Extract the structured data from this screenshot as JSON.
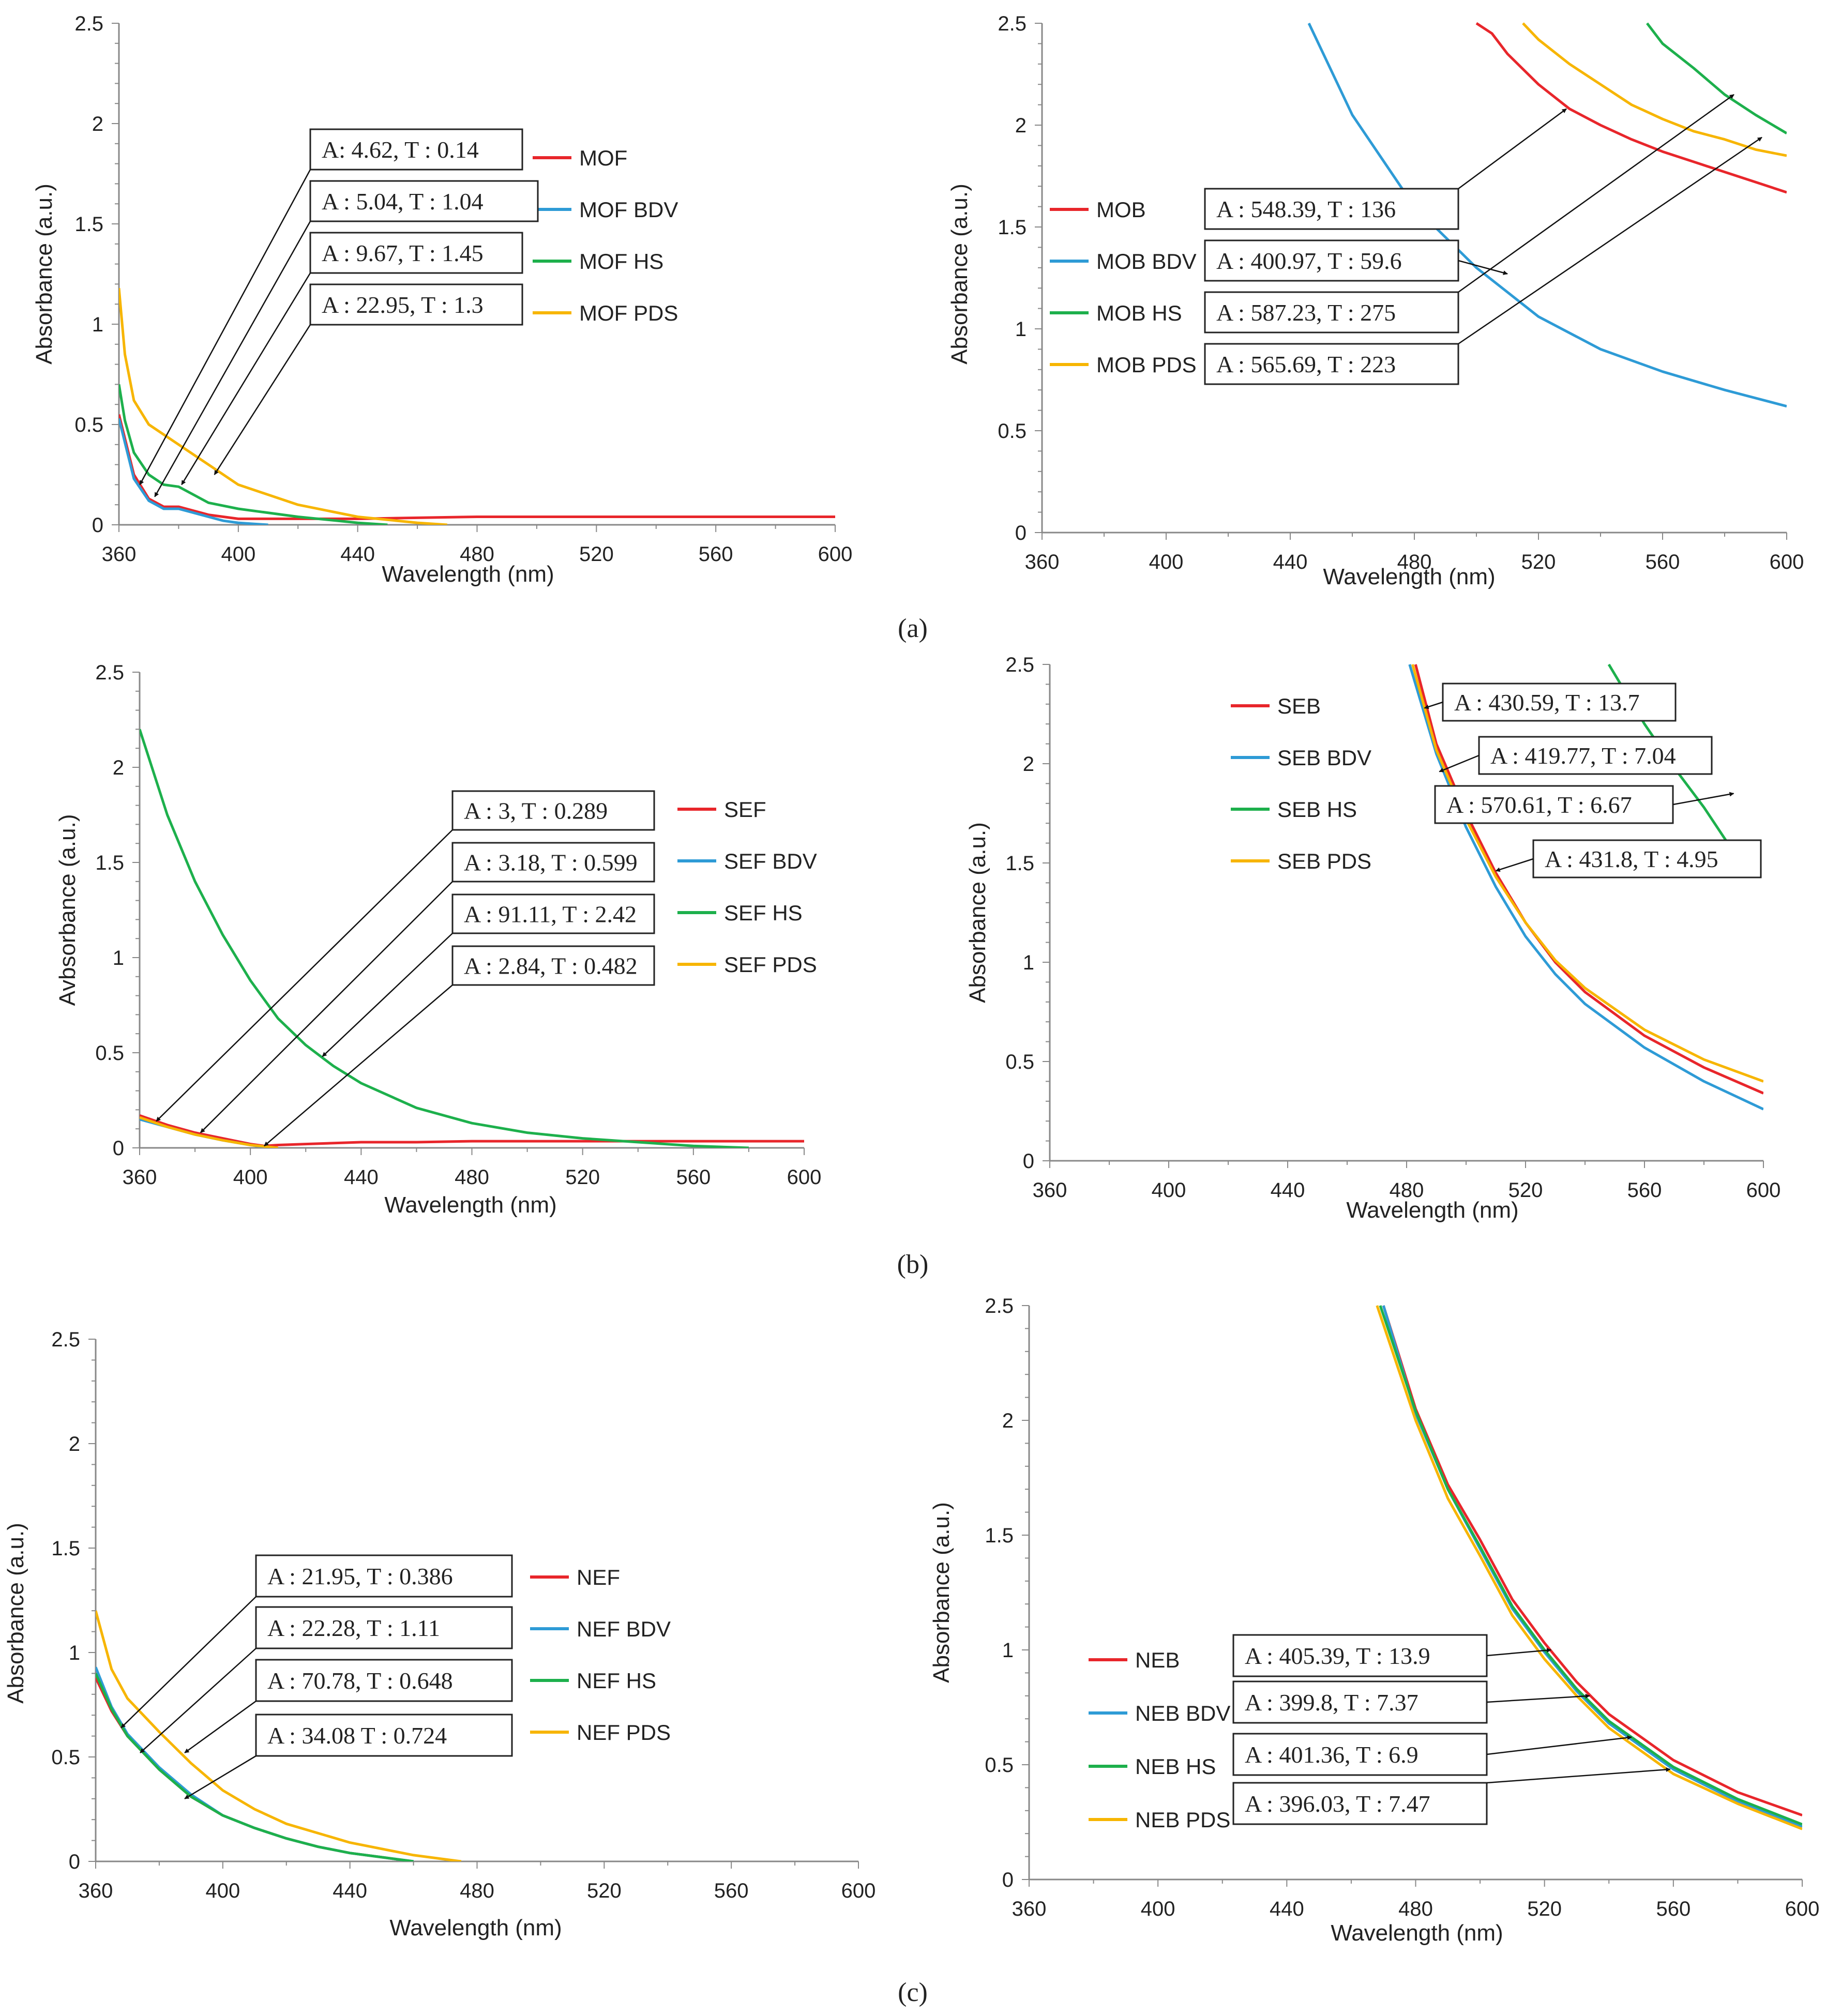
{
  "figure": {
    "panel_labels": [
      "(a)",
      "(b)",
      "(c)"
    ]
  },
  "chart_data": [
    {
      "id": "a-left",
      "type": "line",
      "title": "",
      "xlabel": "Wavelength (nm)",
      "ylabel": "Absorbance (a.u.)",
      "xlim": [
        360,
        600
      ],
      "ylim": [
        0,
        2.5
      ],
      "xticks": [
        "360",
        "400",
        "440",
        "480",
        "520",
        "560",
        "600"
      ],
      "yticks": [
        "0",
        "0.5",
        "1",
        "1.5",
        "2",
        "2.5"
      ],
      "legend_position": "middle-right",
      "series": [
        {
          "name": "MOF",
          "color": "#e8262b",
          "x": [
            360,
            365,
            370,
            375,
            380,
            385,
            390,
            395,
            400,
            410,
            420,
            440,
            460,
            480,
            520,
            560,
            600
          ],
          "y": [
            0.55,
            0.25,
            0.13,
            0.09,
            0.09,
            0.07,
            0.05,
            0.04,
            0.03,
            0.03,
            0.03,
            0.03,
            0.035,
            0.04,
            0.04,
            0.04,
            0.04
          ]
        },
        {
          "name": "MOF BDV",
          "color": "#2e9bd6",
          "x": [
            360,
            365,
            370,
            375,
            380,
            385,
            390,
            395,
            400,
            405,
            410
          ],
          "y": [
            0.53,
            0.23,
            0.12,
            0.08,
            0.08,
            0.06,
            0.04,
            0.02,
            0.01,
            0.005,
            0
          ]
        },
        {
          "name": "MOF HS",
          "color": "#1db04c",
          "x": [
            360,
            362,
            365,
            370,
            375,
            380,
            385,
            390,
            400,
            420,
            440,
            450
          ],
          "y": [
            0.7,
            0.52,
            0.36,
            0.25,
            0.2,
            0.19,
            0.15,
            0.11,
            0.08,
            0.04,
            0.01,
            0
          ]
        },
        {
          "name": "MOF PDS",
          "color": "#f7b500",
          "x": [
            360,
            362,
            365,
            370,
            380,
            390,
            400,
            420,
            440,
            460,
            470
          ],
          "y": [
            1.18,
            0.85,
            0.62,
            0.5,
            0.4,
            0.3,
            0.2,
            0.1,
            0.04,
            0.01,
            0
          ]
        }
      ],
      "annotations": [
        {
          "text": "A: 4.62, T : 0.14",
          "points_to": [
            367,
            0.2
          ]
        },
        {
          "text": "A : 5.04, T : 1.04",
          "points_to": [
            372,
            0.14
          ]
        },
        {
          "text": "A : 9.67, T : 1.45",
          "points_to": [
            381,
            0.2
          ]
        },
        {
          "text": "A : 22.95, T : 1.3",
          "points_to": [
            392,
            0.25
          ]
        }
      ]
    },
    {
      "id": "a-right",
      "type": "line",
      "title": "",
      "xlabel": "Wavelength (nm)",
      "ylabel": "Absorbance (a.u.)",
      "xlim": [
        360,
        600
      ],
      "ylim": [
        0,
        2.5
      ],
      "xticks": [
        "360",
        "400",
        "440",
        "480",
        "520",
        "560",
        "600"
      ],
      "yticks": [
        "0",
        "0.5",
        "1",
        "1.5",
        "2",
        "2.5"
      ],
      "legend_position": "middle-left",
      "series": [
        {
          "name": "MOB",
          "color": "#e8262b",
          "x": [
            500,
            505,
            510,
            520,
            530,
            540,
            550,
            560,
            570,
            580,
            590,
            600
          ],
          "y": [
            2.5,
            2.45,
            2.35,
            2.2,
            2.08,
            2.0,
            1.93,
            1.87,
            1.82,
            1.77,
            1.72,
            1.67
          ]
        },
        {
          "name": "MOB BDV",
          "color": "#2e9bd6",
          "x": [
            446,
            460,
            480,
            500,
            520,
            540,
            560,
            580,
            600
          ],
          "y": [
            2.5,
            2.05,
            1.6,
            1.3,
            1.06,
            0.9,
            0.79,
            0.7,
            0.62
          ]
        },
        {
          "name": "MOB HS",
          "color": "#1db04c",
          "x": [
            555,
            560,
            570,
            580,
            590,
            600
          ],
          "y": [
            2.5,
            2.4,
            2.28,
            2.15,
            2.05,
            1.96
          ]
        },
        {
          "name": "MOB PDS",
          "color": "#f7b500",
          "x": [
            515,
            520,
            530,
            540,
            550,
            560,
            570,
            580,
            590,
            600
          ],
          "y": [
            2.5,
            2.42,
            2.3,
            2.2,
            2.1,
            2.03,
            1.97,
            1.93,
            1.88,
            1.85
          ]
        }
      ],
      "annotations": [
        {
          "text": "A : 548.39, T : 136",
          "points_to": [
            529,
            2.08
          ]
        },
        {
          "text": "A : 400.97, T : 59.6",
          "points_to": [
            510,
            1.27
          ]
        },
        {
          "text": "A : 587.23, T : 275",
          "points_to": [
            583,
            2.15
          ]
        },
        {
          "text": "A : 565.69, T : 223",
          "points_to": [
            592,
            1.94
          ]
        }
      ]
    },
    {
      "id": "b-left",
      "type": "line",
      "title": "",
      "xlabel": "Wavelength (nm)",
      "ylabel": "Avbsorbance (a.u.)",
      "xlim": [
        360,
        600
      ],
      "ylim": [
        0,
        2.5
      ],
      "xticks": [
        "360",
        "400",
        "440",
        "480",
        "520",
        "560",
        "600"
      ],
      "yticks": [
        "0",
        "0.5",
        "1",
        "1.5",
        "2",
        "2.5"
      ],
      "legend_position": "middle-right",
      "series": [
        {
          "name": "SEF",
          "color": "#e8262b",
          "x": [
            360,
            370,
            380,
            390,
            400,
            405,
            410,
            420,
            440,
            460,
            480,
            520,
            560,
            600
          ],
          "y": [
            0.17,
            0.12,
            0.08,
            0.05,
            0.02,
            0.01,
            0.015,
            0.02,
            0.03,
            0.03,
            0.035,
            0.035,
            0.035,
            0.035
          ]
        },
        {
          "name": "SEF BDV",
          "color": "#2e9bd6",
          "x": [
            360,
            370,
            380,
            390,
            400,
            405,
            410
          ],
          "y": [
            0.15,
            0.11,
            0.07,
            0.04,
            0.015,
            0.005,
            0
          ]
        },
        {
          "name": "SEF HS",
          "color": "#1db04c",
          "x": [
            360,
            370,
            380,
            390,
            400,
            410,
            420,
            430,
            440,
            460,
            480,
            500,
            520,
            540,
            560,
            580
          ],
          "y": [
            2.2,
            1.75,
            1.4,
            1.12,
            0.88,
            0.68,
            0.54,
            0.43,
            0.34,
            0.21,
            0.13,
            0.08,
            0.05,
            0.03,
            0.01,
            0
          ]
        },
        {
          "name": "SEF PDS",
          "color": "#f7b500",
          "x": [
            360,
            370,
            380,
            390,
            400,
            410
          ],
          "y": [
            0.16,
            0.11,
            0.07,
            0.04,
            0.015,
            0
          ]
        }
      ],
      "annotations": [
        {
          "text": "A : 3, T : 0.289",
          "points_to": [
            366,
            0.14
          ]
        },
        {
          "text": "A : 3.18, T : 0.599",
          "points_to": [
            382,
            0.08
          ]
        },
        {
          "text": "A : 91.11, T : 2.42",
          "points_to": [
            426,
            0.48
          ]
        },
        {
          "text": "A : 2.84, T : 0.482",
          "points_to": [
            405,
            0.01
          ]
        }
      ]
    },
    {
      "id": "b-right",
      "type": "line",
      "title": "",
      "xlabel": "Wavelength (nm)",
      "ylabel": "Absorbance (a.u.)",
      "xlim": [
        360,
        600
      ],
      "ylim": [
        0,
        2.5
      ],
      "xticks": [
        "360",
        "400",
        "440",
        "480",
        "520",
        "560",
        "600"
      ],
      "yticks": [
        "0",
        "0.5",
        "1",
        "1.5",
        "2",
        "2.5"
      ],
      "legend_position": "top-left",
      "series": [
        {
          "name": "SEB",
          "color": "#e8262b",
          "x": [
            483,
            490,
            500,
            510,
            520,
            530,
            540,
            560,
            580,
            600
          ],
          "y": [
            2.5,
            2.1,
            1.75,
            1.45,
            1.2,
            1.0,
            0.85,
            0.63,
            0.47,
            0.34
          ]
        },
        {
          "name": "SEB BDV",
          "color": "#2e9bd6",
          "x": [
            481,
            490,
            500,
            510,
            520,
            530,
            540,
            560,
            580,
            600
          ],
          "y": [
            2.5,
            2.05,
            1.68,
            1.38,
            1.13,
            0.94,
            0.79,
            0.57,
            0.4,
            0.26
          ]
        },
        {
          "name": "SEB HS",
          "color": "#1db04c",
          "x": [
            548,
            560,
            570,
            580,
            588
          ],
          "y": [
            2.5,
            2.2,
            1.98,
            1.78,
            1.6
          ]
        },
        {
          "name": "SEB PDS",
          "color": "#f7b500",
          "x": [
            482,
            490,
            500,
            510,
            520,
            530,
            540,
            560,
            580,
            600
          ],
          "y": [
            2.5,
            2.07,
            1.72,
            1.43,
            1.2,
            1.01,
            0.87,
            0.66,
            0.51,
            0.4
          ]
        }
      ],
      "annotations": [
        {
          "text": "A : 430.59, T : 13.7",
          "points_to": [
            486,
            2.28
          ]
        },
        {
          "text": "A : 419.77, T : 7.04",
          "points_to": [
            491,
            1.96
          ]
        },
        {
          "text": "A : 570.61, T : 6.67",
          "points_to": [
            590,
            1.85
          ]
        },
        {
          "text": "A : 431.8, T : 4.95",
          "points_to": [
            510,
            1.46
          ]
        }
      ]
    },
    {
      "id": "c-left",
      "type": "line",
      "title": "",
      "xlabel": "Wavelength (nm)",
      "ylabel": "Absorbance (a.u.)",
      "xlim": [
        360,
        600
      ],
      "ylim": [
        0,
        2.5
      ],
      "xticks": [
        "360",
        "400",
        "440",
        "480",
        "520",
        "560",
        "600"
      ],
      "yticks": [
        "0",
        "0.5",
        "1",
        "1.5",
        "2",
        "2.5"
      ],
      "legend_position": "middle-right",
      "series": [
        {
          "name": "NEF",
          "color": "#e8262b",
          "x": [
            360,
            365,
            370,
            380,
            390,
            400,
            410,
            420,
            430,
            440,
            450,
            455,
            460
          ],
          "y": [
            0.88,
            0.72,
            0.6,
            0.44,
            0.31,
            0.22,
            0.16,
            0.11,
            0.07,
            0.04,
            0.02,
            0.01,
            0
          ]
        },
        {
          "name": "NEF BDV",
          "color": "#2e9bd6",
          "x": [
            360,
            365,
            370,
            380,
            390,
            400,
            410,
            420,
            430,
            440,
            450,
            455,
            460
          ],
          "y": [
            0.93,
            0.74,
            0.61,
            0.45,
            0.32,
            0.22,
            0.16,
            0.11,
            0.07,
            0.04,
            0.02,
            0.01,
            0
          ]
        },
        {
          "name": "NEF HS",
          "color": "#1db04c",
          "x": [
            360,
            365,
            370,
            380,
            390,
            400,
            410,
            420,
            430,
            440,
            450,
            460
          ],
          "y": [
            0.9,
            0.73,
            0.6,
            0.44,
            0.31,
            0.22,
            0.16,
            0.11,
            0.07,
            0.04,
            0.02,
            0
          ]
        },
        {
          "name": "NEF PDS",
          "color": "#f7b500",
          "x": [
            360,
            365,
            370,
            380,
            390,
            400,
            410,
            420,
            440,
            460,
            470,
            475
          ],
          "y": [
            1.2,
            0.92,
            0.78,
            0.62,
            0.47,
            0.34,
            0.25,
            0.18,
            0.09,
            0.03,
            0.01,
            0
          ]
        }
      ],
      "annotations": [
        {
          "text": "A : 21.95, T : 0.386",
          "points_to": [
            368,
            0.64
          ]
        },
        {
          "text": "A : 22.28, T : 1.11",
          "points_to": [
            374,
            0.52
          ]
        },
        {
          "text": "A : 70.78, T : 0.648",
          "points_to": [
            388,
            0.52
          ]
        },
        {
          "text": "A : 34.08 T : 0.724",
          "points_to": [
            388,
            0.3
          ]
        }
      ]
    },
    {
      "id": "c-right",
      "type": "line",
      "title": "",
      "xlabel": "Wavelength (nm)",
      "ylabel": "Absorbance (a.u.)",
      "xlim": [
        360,
        600
      ],
      "ylim": [
        0,
        2.5
      ],
      "xticks": [
        "360",
        "400",
        "440",
        "480",
        "520",
        "560",
        "600"
      ],
      "yticks": [
        "0",
        "0.5",
        "1",
        "1.5",
        "2",
        "2.5"
      ],
      "legend_position": "bottom-left",
      "series": [
        {
          "name": "NEB",
          "color": "#e8262b",
          "x": [
            470,
            480,
            490,
            500,
            510,
            520,
            530,
            540,
            560,
            580,
            600
          ],
          "y": [
            2.5,
            2.05,
            1.72,
            1.48,
            1.22,
            1.03,
            0.86,
            0.72,
            0.52,
            0.38,
            0.28
          ]
        },
        {
          "name": "NEB BDV",
          "color": "#2e9bd6",
          "x": [
            470,
            480,
            490,
            500,
            510,
            520,
            530,
            540,
            560,
            580,
            600
          ],
          "y": [
            2.5,
            2.03,
            1.7,
            1.44,
            1.18,
            0.99,
            0.82,
            0.68,
            0.48,
            0.34,
            0.23
          ]
        },
        {
          "name": "NEB HS",
          "color": "#1db04c",
          "x": [
            469,
            480,
            490,
            500,
            510,
            520,
            530,
            540,
            560,
            580,
            600
          ],
          "y": [
            2.5,
            2.04,
            1.7,
            1.45,
            1.19,
            1.0,
            0.83,
            0.69,
            0.49,
            0.35,
            0.24
          ]
        },
        {
          "name": "NEB PDS",
          "color": "#f7b500",
          "x": [
            468,
            480,
            490,
            500,
            510,
            520,
            530,
            540,
            560,
            580,
            600
          ],
          "y": [
            2.5,
            2.0,
            1.66,
            1.41,
            1.15,
            0.96,
            0.8,
            0.66,
            0.46,
            0.33,
            0.22
          ]
        }
      ],
      "annotations": [
        {
          "text": "A : 405.39, T : 13.9",
          "points_to": [
            522,
            1.0
          ]
        },
        {
          "text": "A : 399.8, T : 7.37",
          "points_to": [
            534,
            0.8
          ]
        },
        {
          "text": "A : 401.36, T : 6.9",
          "points_to": [
            547,
            0.62
          ]
        },
        {
          "text": "A : 396.03, T : 7.47",
          "points_to": [
            559,
            0.48
          ]
        }
      ]
    }
  ]
}
